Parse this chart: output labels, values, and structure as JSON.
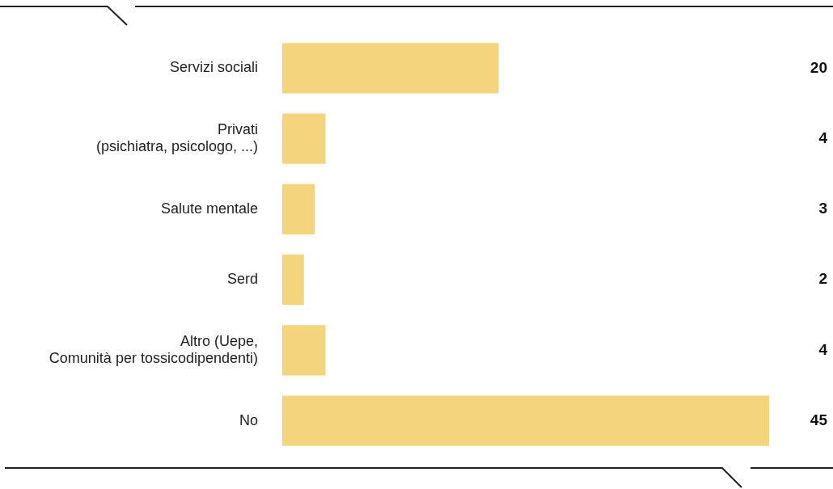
{
  "chart_data": {
    "type": "bar",
    "orientation": "horizontal",
    "categories": [
      "Servizi sociali",
      "Privati\n(psichiatra, psicologo, ...)",
      "Salute mentale",
      "Serd",
      "Altro (Uepe,\nComunità per tossicodipendenti)",
      "No"
    ],
    "values": [
      20,
      4,
      3,
      2,
      4,
      45
    ],
    "color": "#f4d47c",
    "data_labels": true,
    "legend": false
  }
}
